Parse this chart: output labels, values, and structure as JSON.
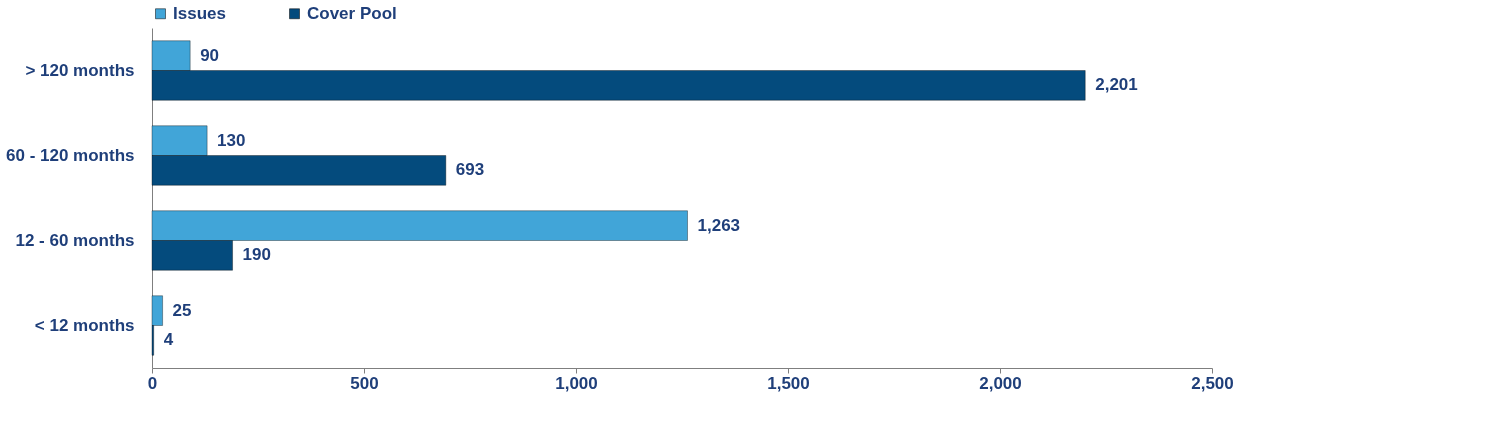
{
  "chart_data": {
    "type": "bar",
    "orientation": "horizontal",
    "categories": [
      "> 120 months",
      "60 - 120 months",
      "12 - 60 months",
      "< 12 months"
    ],
    "series": [
      {
        "name": "Issues",
        "color": "#41a5d8",
        "values": [
          90,
          130,
          1263,
          25
        ],
        "value_labels": [
          "90",
          "130",
          "1,263",
          "25"
        ]
      },
      {
        "name": "Cover Pool",
        "color": "#044b7d",
        "values": [
          2201,
          693,
          190,
          4
        ],
        "value_labels": [
          "2,201",
          "693",
          "190",
          "4"
        ]
      }
    ],
    "xlim": [
      0,
      2500
    ],
    "xticks": [
      0,
      500,
      {
        "value": 1000,
        "label": "1,000"
      },
      {
        "value": 1500,
        "label": "1,500"
      },
      {
        "value": 2000,
        "label": "2,000"
      },
      {
        "value": 2500,
        "label": "2,500"
      }
    ],
    "legend": "top",
    "grid": false
  }
}
